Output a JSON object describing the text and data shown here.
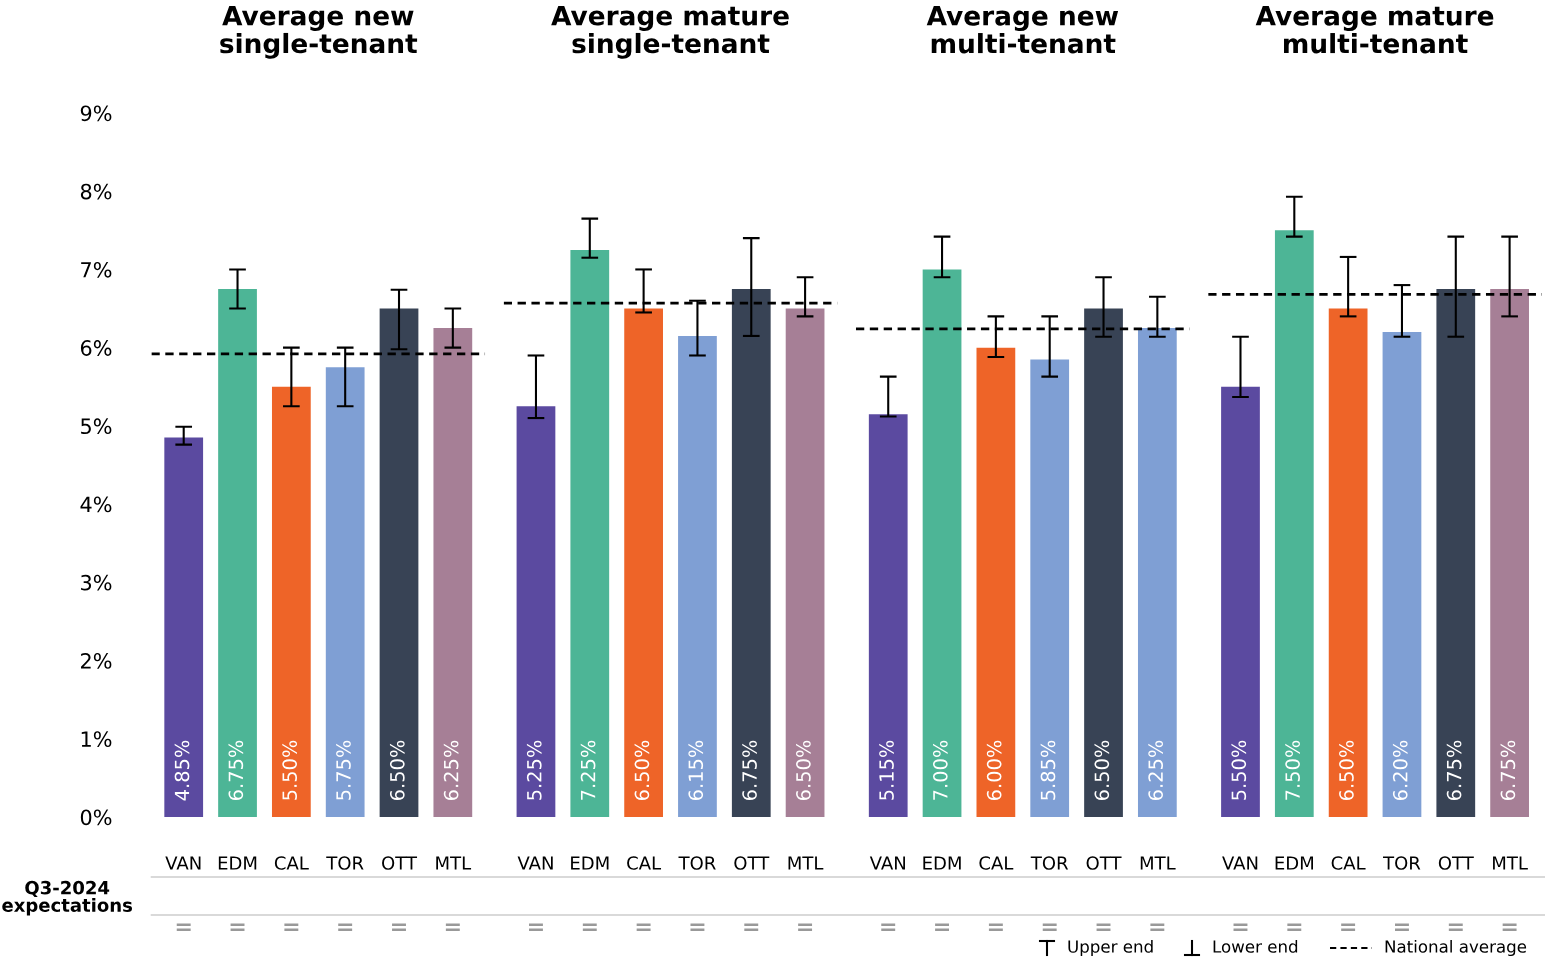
{
  "chart_data": [
    {
      "type": "bar",
      "title": "Average new\nsingle-tenant",
      "categories": [
        "VAN",
        "EDM",
        "CAL",
        "TOR",
        "OTT",
        "MTL"
      ],
      "values": [
        4.85,
        6.75,
        5.5,
        5.75,
        6.5,
        6.25
      ],
      "colors": [
        "#5b4aa0",
        "#4db596",
        "#ee6428",
        "#7f9fd4",
        "#384355",
        "#a67f96"
      ],
      "errors": [
        [
          4.76,
          4.99
        ],
        [
          6.5,
          7.0
        ],
        [
          5.25,
          6.0
        ],
        [
          5.25,
          6.0
        ],
        [
          5.98,
          6.74
        ],
        [
          6.0,
          6.5
        ]
      ],
      "value_labels": [
        "4.85%",
        "6.75%",
        "5.50%",
        "5.75%",
        "6.50%",
        "6.25%"
      ],
      "ylim": [
        0,
        9
      ],
      "yticks": [
        {
          "value": 0,
          "label": "0%"
        },
        {
          "value": 1,
          "label": "1%"
        },
        {
          "value": 2,
          "label": "2%"
        },
        {
          "value": 3,
          "label": "3%"
        },
        {
          "value": 4,
          "label": "4%"
        },
        {
          "value": 5,
          "label": "5%"
        },
        {
          "value": 6,
          "label": "6%"
        },
        {
          "value": 7,
          "label": "7%"
        },
        {
          "value": 8,
          "label": "8%"
        },
        {
          "value": 9,
          "label": "9%"
        }
      ],
      "ref_lines": [
        {
          "axis": "y",
          "value": 5.92,
          "label": "National average",
          "color": "#000000",
          "line_style": "dashed"
        }
      ],
      "annotations": [
        "Q3-2024\nexpectations",
        "=",
        "=",
        "=",
        "=",
        "=",
        "="
      ],
      "grid": false
    },
    {
      "type": "bar",
      "title": "Average mature\nsingle-tenant",
      "categories": [
        "VAN",
        "EDM",
        "CAL",
        "TOR",
        "OTT",
        "MTL"
      ],
      "values": [
        5.25,
        7.25,
        6.5,
        6.15,
        6.75,
        6.5
      ],
      "colors": [
        "#5b4aa0",
        "#4db596",
        "#ee6428",
        "#7f9fd4",
        "#384355",
        "#a67f96"
      ],
      "errors": [
        [
          5.1,
          5.9
        ],
        [
          7.15,
          7.65
        ],
        [
          6.45,
          7.0
        ],
        [
          5.9,
          6.6
        ],
        [
          6.15,
          7.4
        ],
        [
          6.4,
          6.9
        ]
      ],
      "value_labels": [
        "5.25%",
        "7.25%",
        "6.50%",
        "6.15%",
        "6.75%",
        "6.50%"
      ],
      "ylim": [
        0,
        9
      ],
      "tick_labels": "x",
      "ref_lines": [
        {
          "axis": "y",
          "value": 6.57,
          "color": "#000000",
          "line_style": "dashed"
        }
      ],
      "annotations": [
        "=",
        "=",
        "=",
        "=",
        "=",
        "="
      ],
      "grid": false
    },
    {
      "type": "bar",
      "title": "Average new\nmulti-tenant",
      "categories": [
        "VAN",
        "EDM",
        "CAL",
        "TOR",
        "OTT",
        "MTL"
      ],
      "values": [
        5.15,
        7.0,
        6.0,
        5.85,
        6.5,
        6.25
      ],
      "colors": [
        "#5b4aa0",
        "#4db596",
        "#ee6428",
        "#7f9fd4",
        "#384355",
        "#7f9fd4"
      ],
      "errors": [
        [
          5.12,
          5.63
        ],
        [
          6.9,
          7.42
        ],
        [
          5.88,
          6.4
        ],
        [
          5.63,
          6.4
        ],
        [
          6.14,
          6.9
        ],
        [
          6.14,
          6.65
        ]
      ],
      "value_labels": [
        "5.15%",
        "7.00%",
        "6.00%",
        "5.85%",
        "6.50%",
        "6.25%"
      ],
      "ylim": [
        0,
        9
      ],
      "tick_labels": "x",
      "ref_lines": [
        {
          "axis": "y",
          "value": 6.24,
          "color": "#000000",
          "line_style": "dashed"
        }
      ],
      "annotations": [
        "=",
        "=",
        "=",
        "=",
        "=",
        "="
      ],
      "grid": false
    },
    {
      "type": "bar",
      "title": "Average mature\nmulti-tenant",
      "categories": [
        "VAN",
        "EDM",
        "CAL",
        "TOR",
        "OTT",
        "MTL"
      ],
      "values": [
        5.5,
        7.5,
        6.5,
        6.2,
        6.75,
        6.75
      ],
      "colors": [
        "#5b4aa0",
        "#4db596",
        "#ee6428",
        "#7f9fd4",
        "#384355",
        "#a67f96"
      ],
      "errors": [
        [
          5.37,
          6.14
        ],
        [
          7.42,
          7.93
        ],
        [
          6.4,
          7.16
        ],
        [
          6.14,
          6.8
        ],
        [
          6.14,
          7.42
        ],
        [
          6.4,
          7.42
        ]
      ],
      "value_labels": [
        "5.50%",
        "7.50%",
        "6.50%",
        "6.20%",
        "6.75%",
        "6.75%"
      ],
      "ylim": [
        0,
        9
      ],
      "tick_labels": "x",
      "ref_lines": [
        {
          "axis": "y",
          "value": 6.68,
          "color": "#000000",
          "line_style": "dashed"
        }
      ],
      "annotations": [
        "=",
        "=",
        "=",
        "=",
        "=",
        "=",
        "Upper end",
        "Lower end"
      ],
      "grid": false
    }
  ]
}
